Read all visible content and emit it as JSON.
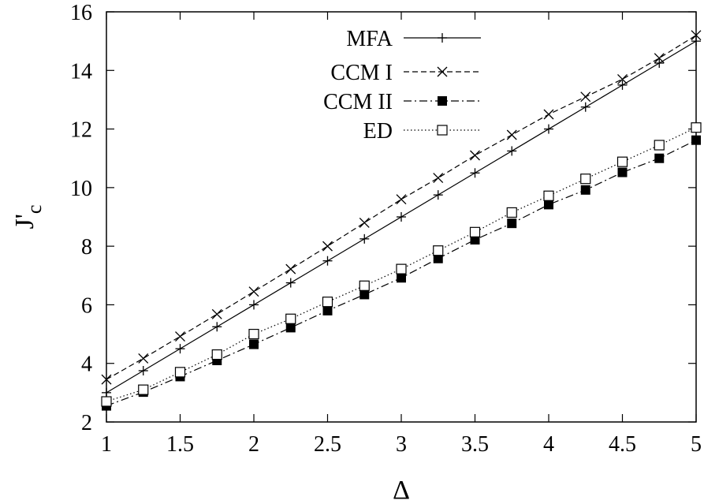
{
  "chart_data": {
    "type": "line",
    "title": "",
    "xlabel": "Δ",
    "ylabel": "J'c",
    "ylabel_main": "J'",
    "ylabel_sub": "c",
    "xlim": [
      1,
      5
    ],
    "ylim": [
      2,
      16
    ],
    "xticks": [
      "1",
      "1.5",
      "2",
      "2.5",
      "3",
      "3.5",
      "4",
      "4.5",
      "5"
    ],
    "yticks": [
      "2",
      "4",
      "6",
      "8",
      "10",
      "12",
      "14",
      "16"
    ],
    "grid": false,
    "legend_position": "top-center",
    "x": [
      1,
      1.25,
      1.5,
      1.75,
      2,
      2.25,
      2.5,
      2.75,
      3,
      3.25,
      3.5,
      3.75,
      4,
      4.25,
      4.5,
      4.75,
      5
    ],
    "series": [
      {
        "name": "MFA",
        "line": "solid",
        "marker": "plus",
        "values": [
          3.0,
          3.75,
          4.5,
          5.25,
          6.0,
          6.75,
          7.5,
          8.25,
          9.0,
          9.75,
          10.5,
          11.25,
          12.0,
          12.75,
          13.5,
          14.25,
          15.0
        ]
      },
      {
        "name": "CCM I",
        "line": "dashed",
        "marker": "cross",
        "values": [
          3.45,
          4.17,
          4.92,
          5.68,
          6.45,
          7.22,
          8.0,
          8.8,
          9.6,
          10.33,
          11.1,
          11.8,
          12.5,
          13.1,
          13.7,
          14.42,
          15.2
        ]
      },
      {
        "name": "CCM II",
        "line": "dashdot",
        "marker": "filled-square",
        "values": [
          2.55,
          3.02,
          3.55,
          4.1,
          4.65,
          5.22,
          5.8,
          6.35,
          6.92,
          7.58,
          8.22,
          8.78,
          9.42,
          9.92,
          10.52,
          11.0,
          11.62
        ]
      },
      {
        "name": "ED",
        "line": "dotted",
        "marker": "open-square",
        "values": [
          2.7,
          3.1,
          3.7,
          4.3,
          5.0,
          5.52,
          6.1,
          6.65,
          7.22,
          7.85,
          8.48,
          9.15,
          9.72,
          10.3,
          10.88,
          11.45,
          12.05
        ]
      }
    ]
  }
}
